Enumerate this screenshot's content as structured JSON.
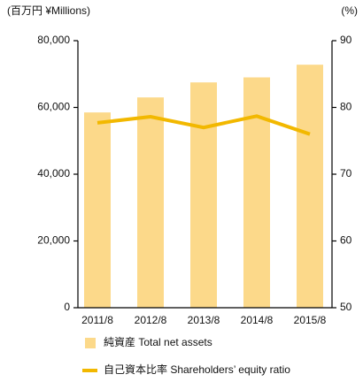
{
  "chart_data": {
    "type": "bar_line",
    "y_unit_label": "(百万円  ¥Millions)",
    "y2_unit_label": "(%)",
    "categories": [
      "2011/8",
      "2012/8",
      "2013/8",
      "2014/8",
      "2015/8"
    ],
    "series": [
      {
        "name": "純資産 Total net assets",
        "type": "bar",
        "color": "#fcd98a",
        "values": [
          58500,
          63000,
          67500,
          69000,
          72800
        ]
      },
      {
        "name": "自己資本比率 Shareholders’ equity ratio",
        "type": "line",
        "axis": "y2",
        "color": "#f2b800",
        "values": [
          77.7,
          78.6,
          77.0,
          78.7,
          76.0
        ]
      }
    ],
    "ylim": [
      0,
      80000
    ],
    "yticks": [
      0,
      {
        "value": 20000,
        "label": "20,000"
      },
      {
        "value": 40000,
        "label": "40,000"
      },
      {
        "value": 60000,
        "label": "60,000"
      },
      {
        "value": 80000,
        "label": "80,000"
      }
    ],
    "y2lim": [
      50,
      90
    ],
    "y2ticks": [
      50,
      60,
      70,
      80,
      90
    ],
    "grid": false
  }
}
